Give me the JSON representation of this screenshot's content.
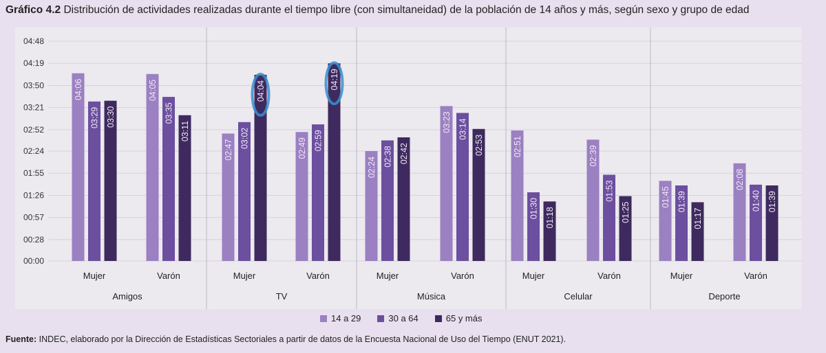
{
  "title": {
    "prefix": "Gráfico 4.2",
    "text": "Distribución de actividades realizadas durante el tiempo libre (con simultaneidad) de la población de 14 años y más, según sexo y grupo de edad"
  },
  "source": {
    "prefix": "Fuente:",
    "text": "INDEC, elaborado por la Dirección de Estadísticas Sectoriales a partir de datos de la Encuesta Nacional de Uso del Tiempo (ENUT 2021)."
  },
  "chart_data": {
    "type": "bar",
    "title": "",
    "xlabel": "",
    "ylabel": "",
    "ylim": [
      "00:00",
      "04:48"
    ],
    "yticks": [
      "00:00",
      "00:28",
      "00:57",
      "01:26",
      "01:55",
      "02:24",
      "02:52",
      "03:21",
      "03:50",
      "04:19",
      "04:48"
    ],
    "grid": true,
    "legend_position": "bottom",
    "groups": [
      "Amigos",
      "TV",
      "Música",
      "Celular",
      "Deporte"
    ],
    "subgroups": [
      "Mujer",
      "Varón"
    ],
    "series": [
      {
        "name": "14 a 29",
        "color": "#9b80c2",
        "values": [
          [
            "04:06",
            "04:05"
          ],
          [
            "02:47",
            "02:49"
          ],
          [
            "02:24",
            "03:23"
          ],
          [
            "02:51",
            "02:39"
          ],
          [
            "01:45",
            "02:08"
          ]
        ]
      },
      {
        "name": "30 a 64",
        "color": "#6c4f9f",
        "values": [
          [
            "03:29",
            "03:35"
          ],
          [
            "03:02",
            "02:59"
          ],
          [
            "02:38",
            "03:14"
          ],
          [
            "01:30",
            "01:53"
          ],
          [
            "01:39",
            "01:40"
          ]
        ]
      },
      {
        "name": "65 y más",
        "color": "#3e2a5e",
        "values": [
          [
            "03:30",
            "03:11"
          ],
          [
            "04:04",
            "04:19"
          ],
          [
            "02:42",
            "02:53"
          ],
          [
            "01:18",
            "01:25"
          ],
          [
            "01:17",
            "01:39"
          ]
        ]
      }
    ],
    "highlights": [
      {
        "group": "TV",
        "subgroup": "Mujer",
        "series": "65 y más",
        "color": "#3a8fd0"
      },
      {
        "group": "TV",
        "subgroup": "Varón",
        "series": "65 y más",
        "color": "#3a8fd0"
      }
    ]
  }
}
